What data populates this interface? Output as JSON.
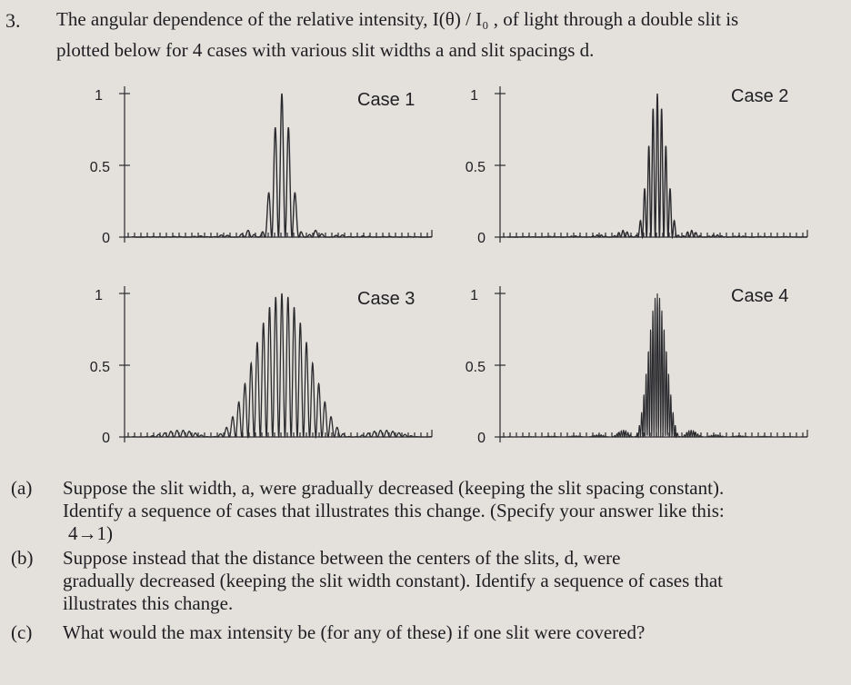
{
  "question": {
    "number": "3.",
    "intro_line1": "The angular dependence of the relative intensity, I(θ) / I₀ , of light through a double slit is",
    "intro_line2": "plotted below for 4 cases with various slit widths a and slit spacings d."
  },
  "chart_data": [
    {
      "type": "line",
      "title": "Case 1",
      "yticks": [
        "1",
        "0.5",
        "0"
      ],
      "ylim": [
        0,
        1
      ],
      "x": "angle θ (unlabeled, symmetric)",
      "fringes_in_central_envelope": 7,
      "relative_envelope_width": 1.0,
      "peak_value": 1.0
    },
    {
      "type": "line",
      "title": "Case 2",
      "yticks": [
        "1",
        "0.5",
        "0"
      ],
      "ylim": [
        0,
        1
      ],
      "x": "angle θ (unlabeled, symmetric)",
      "fringes_in_central_envelope": 11,
      "relative_envelope_width": 1.0,
      "peak_value": 1.0
    },
    {
      "type": "line",
      "title": "Case 3",
      "yticks": [
        "1",
        "0.5",
        "0"
      ],
      "ylim": [
        0,
        1
      ],
      "x": "angle θ (unlabeled, symmetric)",
      "fringes_in_central_envelope": 23,
      "relative_envelope_width": 3.0,
      "peak_value": 1.0
    },
    {
      "type": "line",
      "title": "Case 4",
      "yticks": [
        "1",
        "0.5",
        "0"
      ],
      "ylim": [
        0,
        1
      ],
      "x": "angle θ (unlabeled, symmetric)",
      "fringes_in_central_envelope": 21,
      "relative_envelope_width": 1.0,
      "peak_value": 1.0
    }
  ],
  "parts": [
    {
      "label": "(a)",
      "lines": [
        "Suppose the slit width, a, were gradually decreased (keeping the slit spacing constant).",
        "Identify a sequence of cases that illustrates this change.  (Specify your answer like this:",
        "4→1)"
      ]
    },
    {
      "label": "(b)",
      "lines": [
        "Suppose instead that the distance between the centers of the slits, d, were",
        "gradually decreased (keeping the slit width constant).  Identify a sequence of cases that",
        "illustrates this change."
      ]
    },
    {
      "label": "(c)",
      "lines": [
        "What would the max intensity be (for any of these) if one slit were covered?"
      ]
    }
  ]
}
